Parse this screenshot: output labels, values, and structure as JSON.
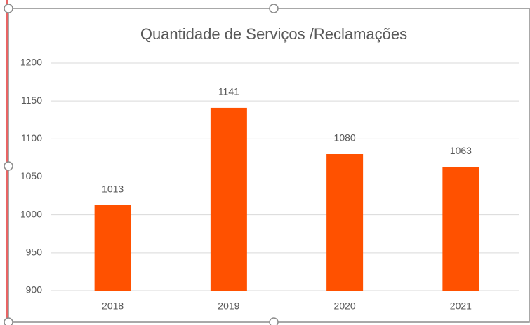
{
  "chart_data": {
    "type": "bar",
    "title": "Quantidade de Serviços /Reclamações",
    "categories": [
      "2018",
      "2019",
      "2020",
      "2021"
    ],
    "values": [
      1013,
      1141,
      1080,
      1063
    ],
    "color": "#ff5100",
    "ylim": [
      900,
      1200
    ],
    "yticks": [
      900,
      950,
      1000,
      1050,
      1100,
      1150,
      1200
    ],
    "grid": true
  }
}
